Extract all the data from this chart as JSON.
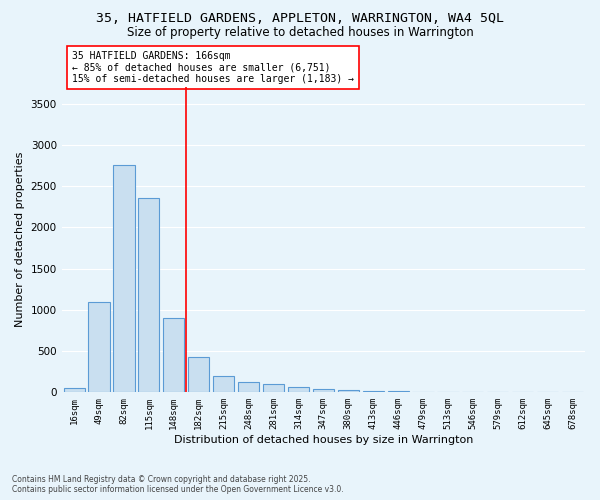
{
  "title_line1": "35, HATFIELD GARDENS, APPLETON, WARRINGTON, WA4 5QL",
  "title_line2": "Size of property relative to detached houses in Warrington",
  "xlabel": "Distribution of detached houses by size in Warrington",
  "ylabel": "Number of detached properties",
  "categories": [
    "16sqm",
    "49sqm",
    "82sqm",
    "115sqm",
    "148sqm",
    "182sqm",
    "215sqm",
    "248sqm",
    "281sqm",
    "314sqm",
    "347sqm",
    "380sqm",
    "413sqm",
    "446sqm",
    "479sqm",
    "513sqm",
    "546sqm",
    "579sqm",
    "612sqm",
    "645sqm",
    "678sqm"
  ],
  "values": [
    50,
    1100,
    2750,
    2350,
    900,
    430,
    200,
    130,
    100,
    60,
    40,
    30,
    20,
    15,
    10,
    8,
    5,
    3,
    2,
    1,
    1
  ],
  "bar_color": "#c9dff0",
  "bar_edge_color": "#5b9bd5",
  "red_line_x": 4.5,
  "annotation_title": "35 HATFIELD GARDENS: 166sqm",
  "annotation_line2": "← 85% of detached houses are smaller (6,751)",
  "annotation_line3": "15% of semi-detached houses are larger (1,183) →",
  "ylim": [
    0,
    3700
  ],
  "yticks": [
    0,
    500,
    1000,
    1500,
    2000,
    2500,
    3000,
    3500
  ],
  "footnote_line1": "Contains HM Land Registry data © Crown copyright and database right 2025.",
  "footnote_line2": "Contains public sector information licensed under the Open Government Licence v3.0.",
  "background_color": "#e8f4fb",
  "grid_color": "#ffffff",
  "title_fontsize": 9.5,
  "subtitle_fontsize": 8.5,
  "tick_fontsize": 6.5,
  "ylabel_fontsize": 8,
  "xlabel_fontsize": 8,
  "annotation_fontsize": 7,
  "footnote_fontsize": 5.5
}
